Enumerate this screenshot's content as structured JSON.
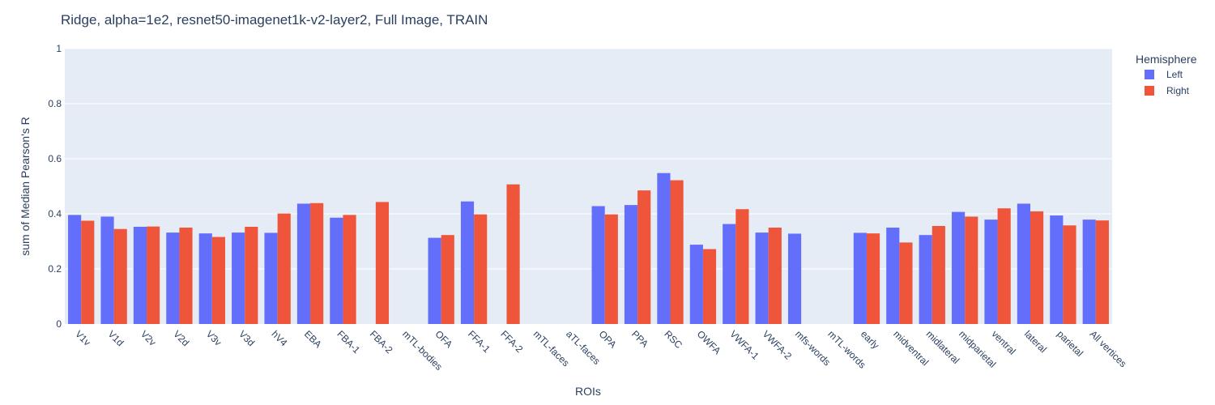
{
  "chart_data": {
    "type": "bar",
    "title": "Ridge, alpha=1e2, resnet50-imagenet1k-v2-layer2, Full Image, TRAIN",
    "xlabel": "ROIs",
    "ylabel": "sum of Median Pearson's R",
    "ylim": [
      0,
      1
    ],
    "yticks": [
      "0",
      "0.2",
      "0.4",
      "0.6",
      "0.8",
      "1"
    ],
    "grid": true,
    "legend": {
      "title": "Hemisphere",
      "placement": "top-right"
    },
    "categories": [
      "V1v",
      "V1d",
      "V2v",
      "V2d",
      "V3v",
      "V3d",
      "hV4",
      "EBA",
      "FBA-1",
      "FBA-2",
      "mTL-bodies",
      "OFA",
      "FFA-1",
      "FFA-2",
      "mTL-faces",
      "aTL-faces",
      "OPA",
      "PPA",
      "RSC",
      "OWFA",
      "VWFA-1",
      "VWFA-2",
      "mfs-words",
      "mTL-words",
      "early",
      "midventral",
      "midlateral",
      "midparietal",
      "ventral",
      "lateral",
      "parietal",
      "All vertices"
    ],
    "series": [
      {
        "name": "Left",
        "color": "#636efa",
        "values": [
          0.396,
          0.39,
          0.353,
          0.332,
          0.329,
          0.332,
          0.331,
          0.437,
          0.386,
          null,
          null,
          0.313,
          0.445,
          null,
          null,
          null,
          0.428,
          0.432,
          0.548,
          0.288,
          0.363,
          0.332,
          0.328,
          null,
          0.331,
          0.35,
          0.323,
          0.407,
          0.379,
          0.437,
          0.394,
          0.379
        ]
      },
      {
        "name": "Right",
        "color": "#ef553b",
        "values": [
          0.375,
          0.345,
          0.354,
          0.35,
          0.316,
          0.353,
          0.401,
          0.439,
          0.396,
          0.443,
          null,
          0.323,
          0.398,
          0.507,
          null,
          null,
          0.398,
          0.485,
          0.522,
          0.272,
          0.417,
          0.35,
          null,
          null,
          0.329,
          0.296,
          0.356,
          0.39,
          0.42,
          0.409,
          0.358,
          0.376
        ]
      }
    ]
  }
}
